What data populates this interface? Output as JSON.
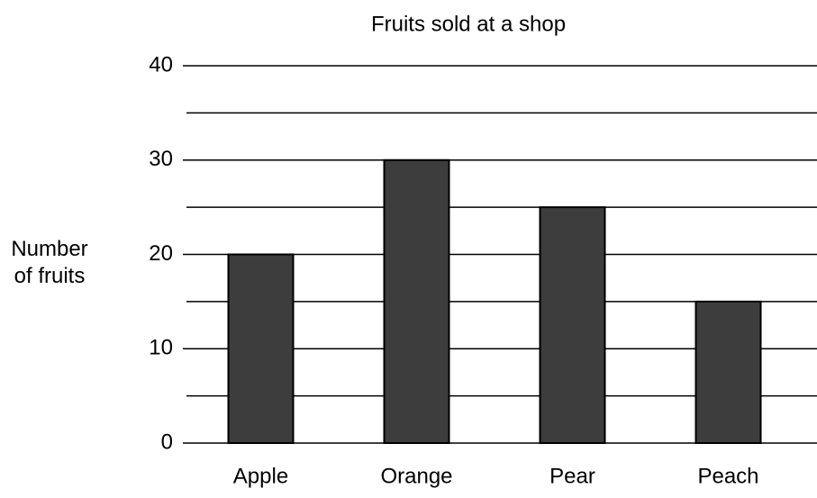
{
  "chart_data": {
    "type": "bar",
    "title": "Fruits sold at a shop",
    "ylabel": "Number of fruits",
    "categories": [
      "Apple",
      "Orange",
      "Pear",
      "Peach"
    ],
    "values": [
      20,
      30,
      25,
      15
    ],
    "color": "#3d3d3d",
    "ylim": [
      0,
      40
    ],
    "yticks": [
      0,
      10,
      20,
      30,
      40
    ],
    "minor_yticks": [
      5,
      15,
      25,
      35
    ],
    "grid": true
  }
}
